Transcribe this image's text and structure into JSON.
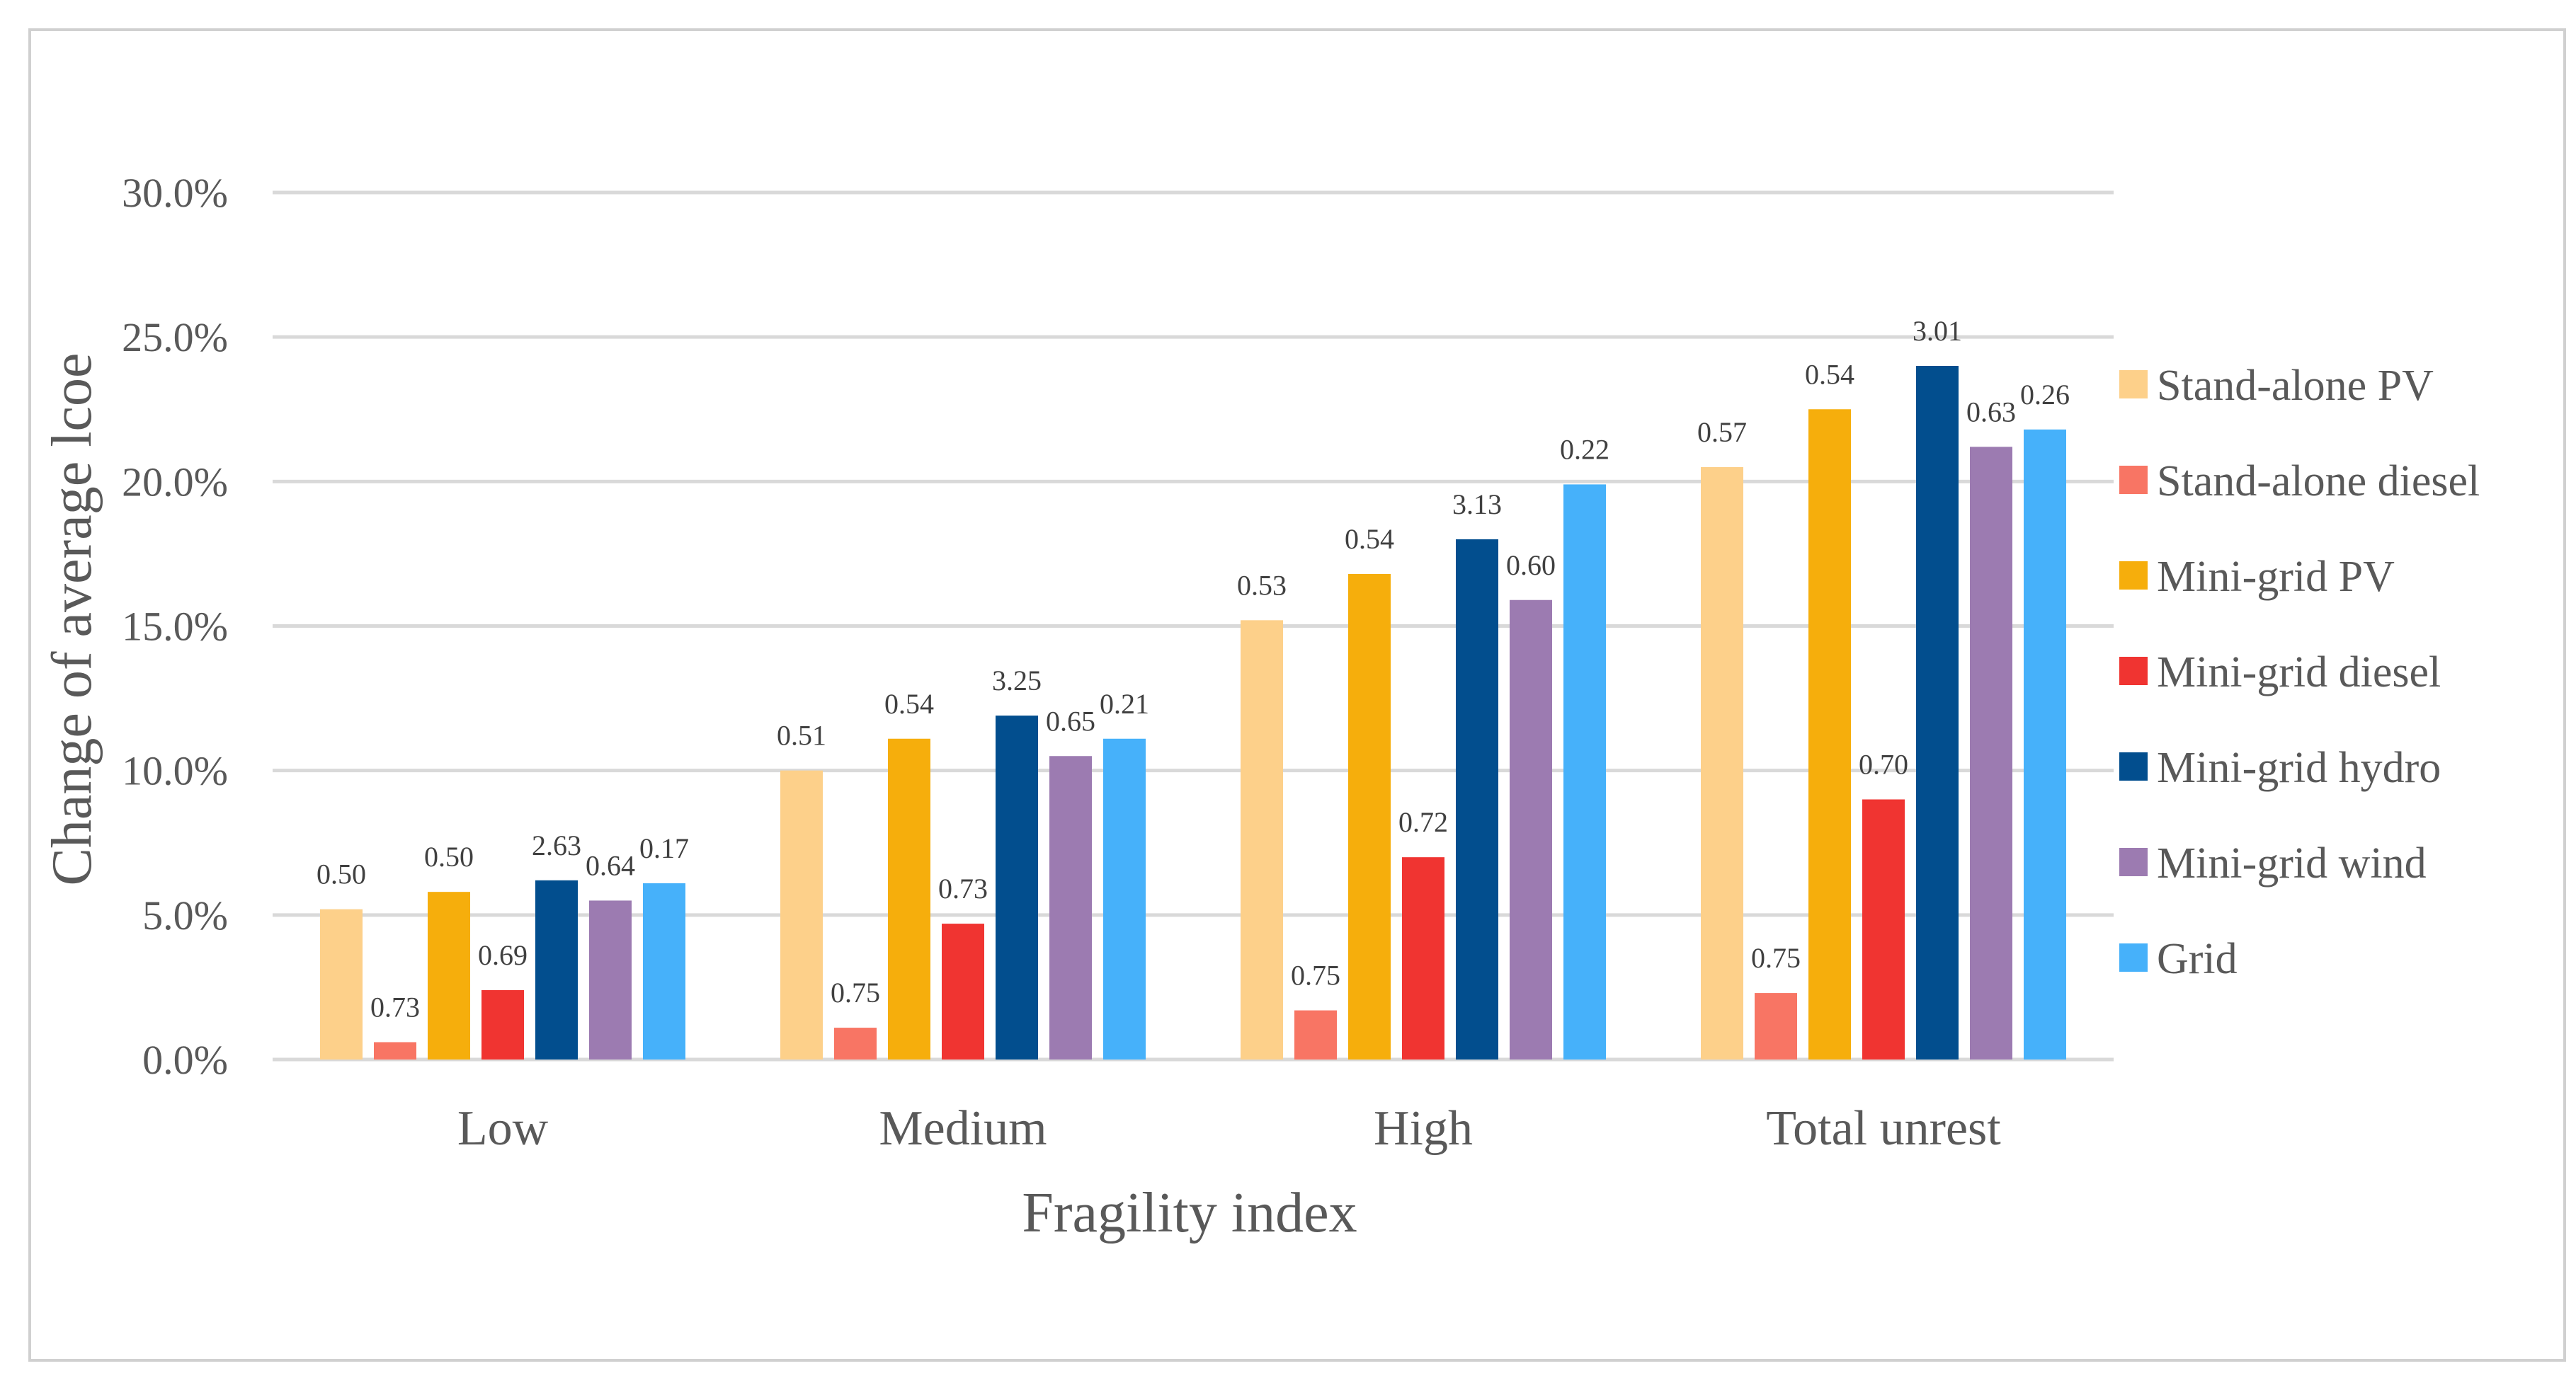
{
  "chart_data": {
    "type": "bar",
    "title": "",
    "xlabel": "Fragility index",
    "ylabel": "Change of average lcoe",
    "ylim": [
      0,
      0.3
    ],
    "yticks": [
      "0.0%",
      "5.0%",
      "10.0%",
      "15.0%",
      "20.0%",
      "25.0%",
      "30.0%"
    ],
    "grid": true,
    "legend_position": "right",
    "categories": [
      "Low",
      "Medium",
      "High",
      "Total unrest"
    ],
    "series": [
      {
        "name": "Stand-alone PV",
        "color": "#FDD08A",
        "values": [
          0.052,
          0.1,
          0.152,
          0.205
        ],
        "labels": [
          "0.50",
          "0.51",
          "0.53",
          "0.57"
        ]
      },
      {
        "name": "Stand-alone diesel",
        "color": "#F87564",
        "values": [
          0.006,
          0.011,
          0.017,
          0.023
        ],
        "labels": [
          "0.73",
          "0.75",
          "0.75",
          "0.75"
        ]
      },
      {
        "name": "Mini-grid PV",
        "color": "#F6AE0C",
        "values": [
          0.058,
          0.111,
          0.168,
          0.225
        ],
        "labels": [
          "0.50",
          "0.54",
          "0.54",
          "0.54"
        ]
      },
      {
        "name": "Mini-grid diesel",
        "color": "#F03431",
        "values": [
          0.024,
          0.047,
          0.07,
          0.09
        ],
        "labels": [
          "0.69",
          "0.73",
          "0.72",
          "0.70"
        ]
      },
      {
        "name": "Mini-grid hydro",
        "color": "#024E8E",
        "values": [
          0.062,
          0.119,
          0.18,
          0.24
        ],
        "labels": [
          "2.63",
          "3.25",
          "3.13",
          "3.01"
        ]
      },
      {
        "name": "Mini-grid wind",
        "color": "#9C7BB1",
        "values": [
          0.055,
          0.105,
          0.159,
          0.212
        ],
        "labels": [
          "0.64",
          "0.65",
          "0.60",
          "0.63"
        ]
      },
      {
        "name": "Grid",
        "color": "#46B1FA",
        "values": [
          0.061,
          0.111,
          0.199,
          0.218
        ],
        "labels": [
          "0.17",
          "0.21",
          "0.22",
          "0.26"
        ]
      }
    ]
  }
}
